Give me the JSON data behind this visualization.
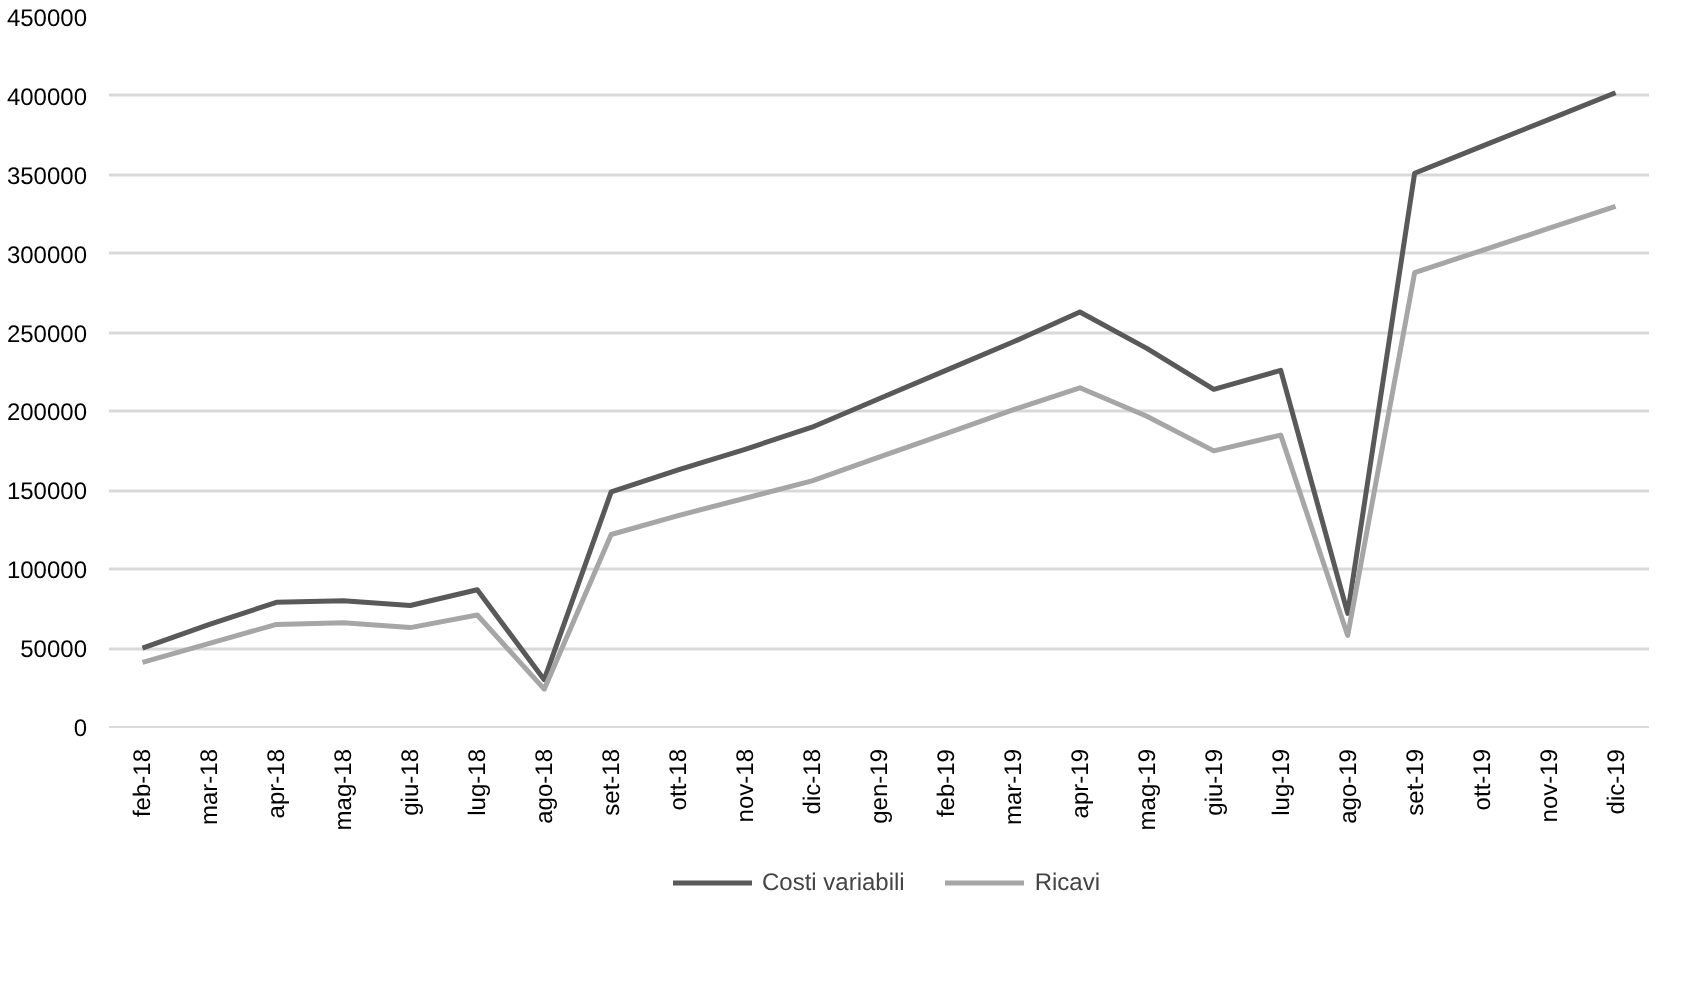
{
  "chart_data": {
    "type": "line",
    "categories": [
      "feb-18",
      "mar-18",
      "apr-18",
      "mag-18",
      "giu-18",
      "lug-18",
      "ago-18",
      "set-18",
      "ott-18",
      "nov-18",
      "dic-18",
      "gen-19",
      "feb-19",
      "mar-19",
      "apr-19",
      "mag-19",
      "giu-19",
      "lug-19",
      "ago-19",
      "set-19",
      "ott-19",
      "nov-19",
      "dic-19"
    ],
    "series": [
      {
        "name": "Costi variabili",
        "color": "#595959",
        "values": [
          50000,
          65000,
          79000,
          80000,
          77000,
          87000,
          30000,
          149000,
          163000,
          176000,
          190000,
          208000,
          226000,
          244000,
          263000,
          240000,
          214000,
          226000,
          72000,
          351000,
          368000,
          385000,
          402000
        ]
      },
      {
        "name": "Ricavi",
        "color": "#a6a6a6",
        "values": [
          41000,
          53000,
          65000,
          66000,
          63000,
          71000,
          24000,
          122000,
          134000,
          145000,
          156000,
          171000,
          186000,
          201000,
          215000,
          197000,
          175000,
          185000,
          58000,
          288000,
          302000,
          316000,
          330000
        ]
      }
    ],
    "ylim": [
      0,
      450000
    ],
    "yticks": [
      0,
      50000,
      100000,
      150000,
      200000,
      250000,
      300000,
      350000,
      400000,
      450000
    ],
    "grid": "y",
    "legend": "bottom",
    "marker": "none",
    "line_style": "solid"
  }
}
